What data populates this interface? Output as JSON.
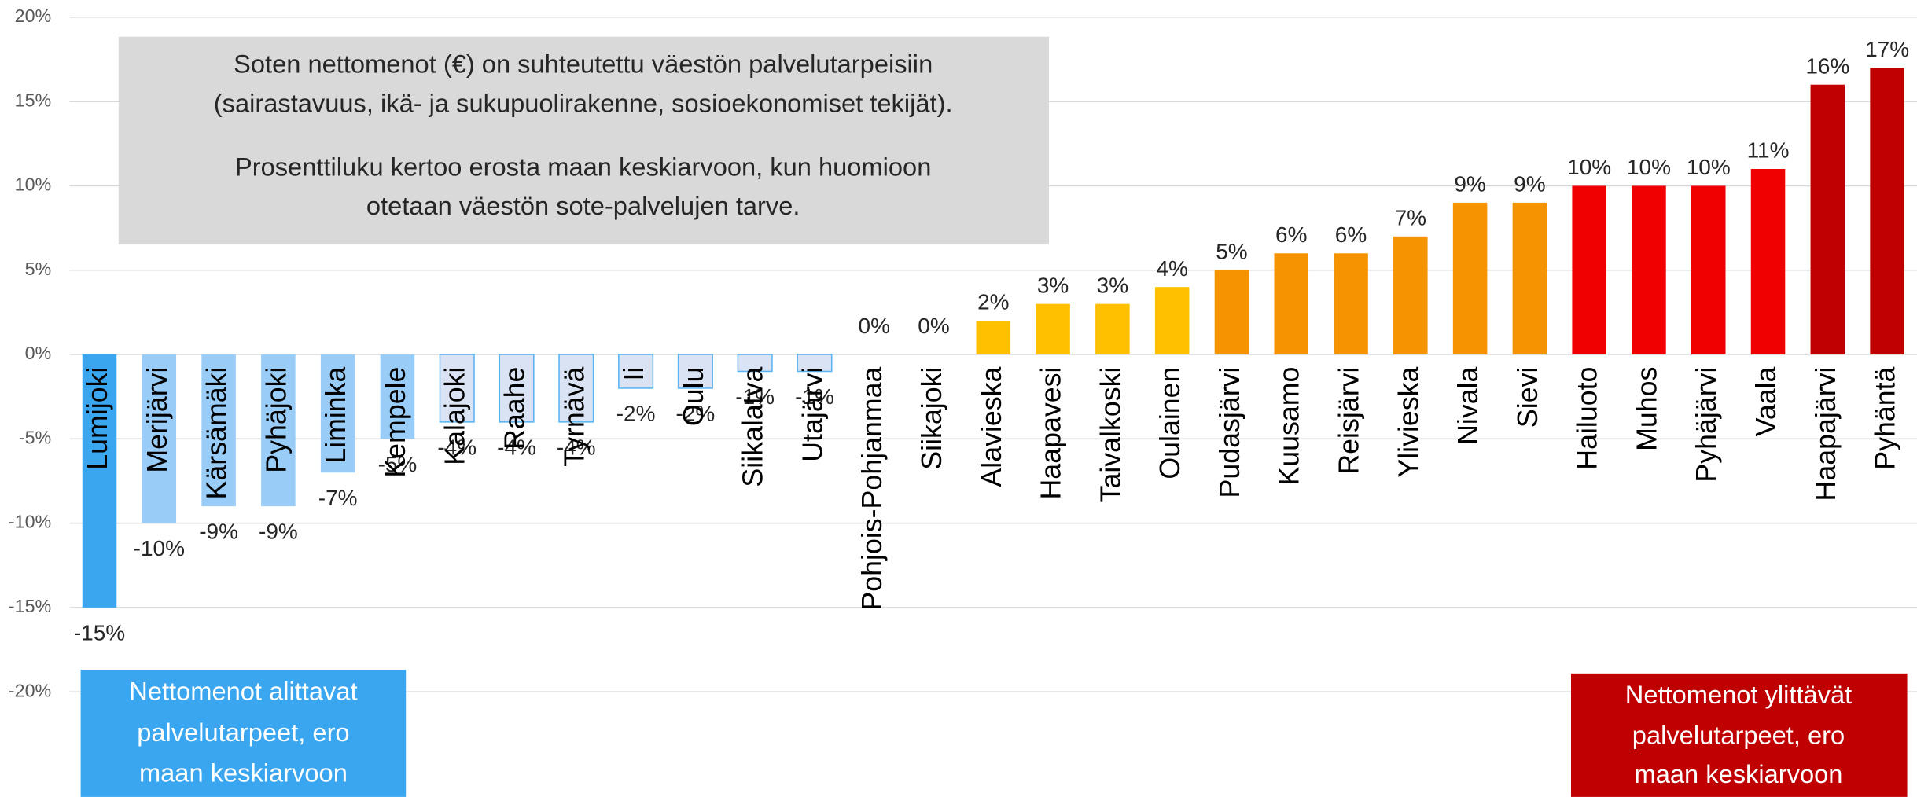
{
  "chart_data": {
    "type": "bar",
    "categories": [
      "Lumijoki",
      "Merijärvi",
      "Kärsämäki",
      "Pyhäjoki",
      "Liminka",
      "Kempele",
      "Kalajoki",
      "Raahe",
      "Tyrnävä",
      "Ii",
      "Oulu",
      "Siikalatva",
      "Utajärvi",
      "Pohjois-Pohjanmaa",
      "Siikajoki",
      "Alavieska",
      "Haapavesi",
      "Taivalkoski",
      "Oulainen",
      "Pudasjärvi",
      "Kuusamo",
      "Reisjärvi",
      "Ylivieska",
      "Nivala",
      "Sievi",
      "Hailuoto",
      "Muhos",
      "Pyhäjärvi",
      "Vaala",
      "Haapajärvi",
      "Pyhäntä"
    ],
    "values": [
      -15,
      -10,
      -9,
      -9,
      -7,
      -5,
      -4,
      -4,
      -4,
      -2,
      -2,
      -1,
      -1,
      0,
      0,
      2,
      3,
      3,
      4,
      5,
      6,
      6,
      7,
      9,
      9,
      10,
      10,
      10,
      11,
      16,
      17
    ],
    "value_labels": [
      "-15%",
      "-10%",
      "-9%",
      "-9%",
      "-7%",
      "-5%",
      "-4%",
      "-4%",
      "-4%",
      "-2%",
      "-2%",
      "-1%",
      "-1%",
      "0%",
      "0%",
      "2%",
      "3%",
      "3%",
      "4%",
      "5%",
      "6%",
      "6%",
      "7%",
      "9%",
      "9%",
      "10%",
      "10%",
      "10%",
      "11%",
      "16%",
      "17%"
    ],
    "colors": [
      "#3aa6f0",
      "#99cdf7",
      "#99cdf7",
      "#99cdf7",
      "#99cdf7",
      "#99cdf7",
      "#dae3f3",
      "#dae3f3",
      "#dae3f3",
      "#dae3f3",
      "#dae3f3",
      "#dae3f3",
      "#dae3f3",
      "#dae3f3",
      "#dae3f3",
      "#ffc000",
      "#ffc000",
      "#ffc000",
      "#ffc000",
      "#f59300",
      "#f59300",
      "#f59300",
      "#f59300",
      "#f59300",
      "#f59300",
      "#f00000",
      "#f00000",
      "#f00000",
      "#f00000",
      "#c00000",
      "#c00000"
    ],
    "ylim": [
      -20,
      20
    ],
    "yticks": [
      {
        "value": -20,
        "label": "-20%"
      },
      {
        "value": -15,
        "label": "-15%"
      },
      {
        "value": -10,
        "label": "-10%"
      },
      {
        "value": -5,
        "label": "-5%"
      },
      {
        "value": 0,
        "label": "0%"
      },
      {
        "value": 5,
        "label": "5%"
      },
      {
        "value": 10,
        "label": "10%"
      },
      {
        "value": 15,
        "label": "15%"
      },
      {
        "value": 20,
        "label": "20%"
      }
    ],
    "grid": true,
    "annotations": [
      {
        "lines": [
          "Soten nettomenot (€) on suhteutettu väestön palvelutarpeisiin",
          "(sairastavuus, ikä- ja sukupuolirakenne, sosioekonomiset tekijät).",
          "Prosenttiluku kertoo erosta maan keskiarvoon, kun huomioon",
          "otetaan väestön sote-palvelujen tarve."
        ]
      },
      {
        "lines": [
          "Nettomenot alittavat",
          "palvelutarpeet, ero",
          "maan keskiarvoon"
        ]
      },
      {
        "lines": [
          "Nettomenot ylittävät",
          "palvelutarpeet, ero",
          "maan keskiarvoon"
        ]
      }
    ]
  }
}
